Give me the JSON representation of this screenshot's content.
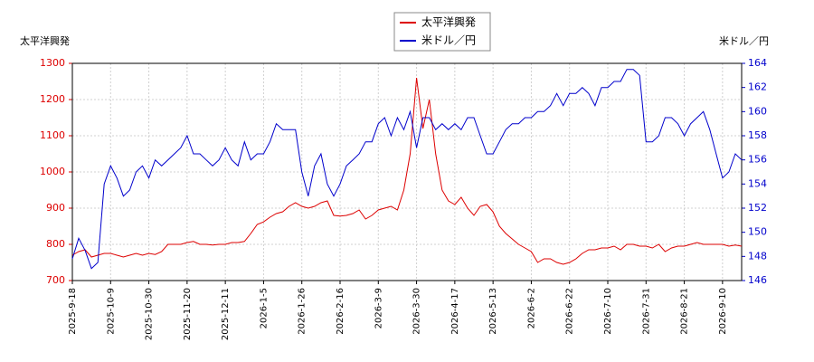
{
  "chart_data": {
    "type": "line",
    "y_label": "太平洋興発",
    "y2_label": "米ドル／円",
    "categories": [
      "2025-9-18",
      null,
      null,
      null,
      null,
      null,
      "2025-10-9",
      null,
      null,
      null,
      null,
      null,
      "2025-10-30",
      null,
      null,
      null,
      null,
      null,
      "2025-11-20",
      null,
      null,
      null,
      null,
      null,
      "2025-12-11",
      null,
      null,
      null,
      null,
      null,
      "2026-1-5",
      null,
      null,
      null,
      null,
      null,
      "2026-1-26",
      null,
      null,
      null,
      null,
      null,
      "2026-2-16",
      null,
      null,
      null,
      null,
      null,
      "2026-3-9",
      null,
      null,
      null,
      null,
      null,
      "2026-3-30",
      null,
      null,
      null,
      null,
      null,
      "2026-4-17",
      null,
      null,
      null,
      null,
      null,
      "2026-5-13",
      null,
      null,
      null,
      null,
      null,
      "2026-6-2",
      null,
      null,
      null,
      null,
      null,
      "2026-6-22",
      null,
      null,
      null,
      null,
      null,
      "2026-7-10",
      null,
      null,
      null,
      null,
      null,
      "2026-7-31",
      null,
      null,
      null,
      null,
      null,
      "2026-8-21",
      null,
      null,
      null,
      null,
      null,
      "2026-9-10",
      null,
      null,
      null
    ],
    "series": [
      {
        "name": "太平洋興発",
        "color": "#dd0000",
        "axis": "y",
        "values": [
          770,
          780,
          785,
          765,
          770,
          775,
          775,
          770,
          765,
          770,
          775,
          770,
          775,
          772,
          780,
          800,
          800,
          800,
          805,
          808,
          800,
          800,
          798,
          800,
          800,
          805,
          805,
          808,
          830,
          855,
          862,
          875,
          885,
          890,
          905,
          915,
          905,
          900,
          905,
          915,
          920,
          880,
          878,
          880,
          885,
          895,
          870,
          880,
          895,
          900,
          905,
          895,
          950,
          1050,
          1260,
          1120,
          1200,
          1050,
          950,
          920,
          910,
          930,
          900,
          880,
          905,
          910,
          890,
          850,
          830,
          815,
          800,
          790,
          780,
          750,
          760,
          760,
          750,
          745,
          750,
          760,
          775,
          785,
          785,
          790,
          790,
          795,
          785,
          800,
          800,
          795,
          795,
          790,
          800,
          780,
          790,
          795,
          795,
          800,
          805,
          800,
          800,
          800,
          800,
          795,
          798,
          795
        ]
      },
      {
        "name": "米ドル／円",
        "color": "#0000cc",
        "axis": "y2",
        "values": [
          147.8,
          149.5,
          148.5,
          147.0,
          147.5,
          154.0,
          155.5,
          154.5,
          153.0,
          153.5,
          155.0,
          155.5,
          154.5,
          156.0,
          155.5,
          156.0,
          156.5,
          157.0,
          158.0,
          156.5,
          156.5,
          156.0,
          155.5,
          156.0,
          157.0,
          156.0,
          155.5,
          157.5,
          156.0,
          156.5,
          156.5,
          157.5,
          159.0,
          158.5,
          158.5,
          158.5,
          155.0,
          153.0,
          155.5,
          156.5,
          154.0,
          153.0,
          154.0,
          155.5,
          156.0,
          156.5,
          157.5,
          157.5,
          159.0,
          159.5,
          158.0,
          159.5,
          158.5,
          160.0,
          157.0,
          159.5,
          159.5,
          158.5,
          159.0,
          158.5,
          159.0,
          158.5,
          159.5,
          159.5,
          158.0,
          156.5,
          156.5,
          157.5,
          158.5,
          159.0,
          159.0,
          159.5,
          159.5,
          160.0,
          160.0,
          160.5,
          161.5,
          160.5,
          161.5,
          161.5,
          162.0,
          161.5,
          160.5,
          162.0,
          162.0,
          162.5,
          162.5,
          163.5,
          163.5,
          163.0,
          157.5,
          157.5,
          158.0,
          159.5,
          159.5,
          159.0,
          158.0,
          159.0,
          159.5,
          160.0,
          158.5,
          156.5,
          154.5,
          155.0,
          156.5,
          156.0
        ]
      }
    ],
    "ylim": [
      700,
      1300
    ],
    "yticks": [
      700,
      800,
      900,
      1000,
      1100,
      1200,
      1300
    ],
    "y2lim": [
      146,
      164
    ],
    "y2ticks": [
      146,
      148,
      150,
      152,
      154,
      156,
      158,
      160,
      162,
      164
    ],
    "grid": true,
    "legend": "top"
  }
}
